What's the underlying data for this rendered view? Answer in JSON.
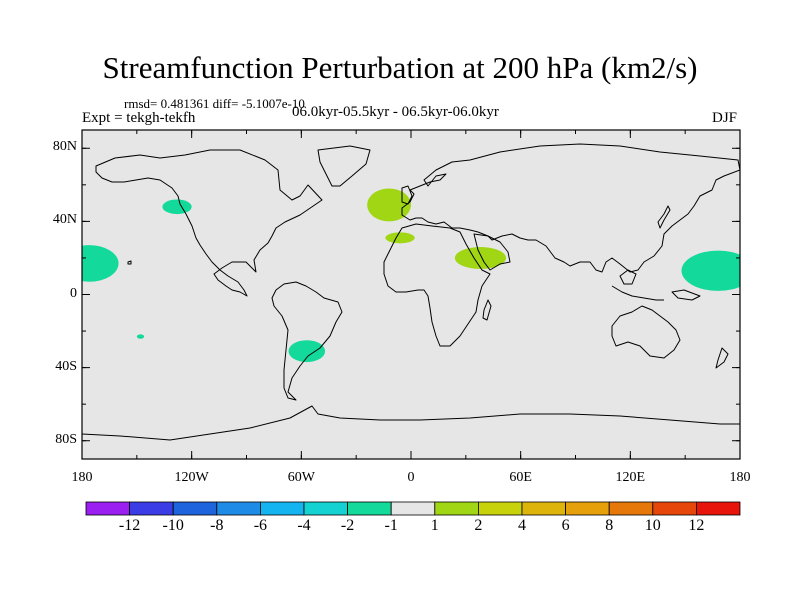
{
  "title": "Streamfunction Perturbation at 200 hPa (km2/s)",
  "stats": "rmsd= 0.481361 diff= -5.1007e-10",
  "expt": "Expt = tekgh-tekfh",
  "period": "06.0kyr-05.5kyr - 06.5kyr-06.0kyr",
  "season": "DJF",
  "colors": {
    "ocean": "#e6e6e6",
    "coast": "#000000"
  },
  "y_ticks": [
    {
      "lat": 80,
      "label": "80N"
    },
    {
      "lat": 40,
      "label": "40N"
    },
    {
      "lat": 0,
      "label": "0"
    },
    {
      "lat": -40,
      "label": "40S"
    },
    {
      "lat": -80,
      "label": "80S"
    }
  ],
  "x_ticks": [
    {
      "lon": -180,
      "label": "180"
    },
    {
      "lon": -120,
      "label": "120W"
    },
    {
      "lon": -60,
      "label": "60W"
    },
    {
      "lon": 0,
      "label": "0"
    },
    {
      "lon": 60,
      "label": "60E"
    },
    {
      "lon": 120,
      "label": "120E"
    },
    {
      "lon": 180,
      "label": "180"
    }
  ],
  "anomalies": [
    {
      "name": "north-atlantic",
      "lon": -12,
      "lat": 49,
      "rlon": 12,
      "rlat": 9,
      "color": "#a0d614"
    },
    {
      "name": "mediterranean",
      "lon": -6,
      "lat": 31,
      "rlon": 8,
      "rlat": 3,
      "color": "#a0d614"
    },
    {
      "name": "north-africa",
      "lon": 38,
      "lat": 20,
      "rlon": 14,
      "rlat": 6,
      "color": "#a0d614"
    },
    {
      "name": "ne-pacific",
      "lon": -128,
      "lat": 48,
      "rlon": 8,
      "rlat": 4,
      "color": "#13d99a"
    },
    {
      "name": "central-pacific-east",
      "lon": -176,
      "lat": 17,
      "rlon": 16,
      "rlat": 10,
      "color": "#13d99a"
    },
    {
      "name": "western-pacific",
      "lon": 168,
      "lat": 13,
      "rlon": 20,
      "rlat": 11,
      "color": "#13d99a"
    },
    {
      "name": "south-america",
      "lon": -57,
      "lat": -31,
      "rlon": 10,
      "rlat": 6,
      "color": "#13d99a"
    },
    {
      "name": "small-south-pacific",
      "lon": -148,
      "lat": -23,
      "rlon": 2,
      "rlat": 1.2,
      "color": "#13d99a"
    }
  ],
  "colorbar": {
    "colors": [
      "#9b1ff0",
      "#3c3ce6",
      "#1e64dc",
      "#1e8ce6",
      "#14b4f0",
      "#14d2d2",
      "#13d99a",
      "#e6e6e6",
      "#a0d614",
      "#c8d20a",
      "#dcb40a",
      "#e6a00a",
      "#e6780a",
      "#e6460a",
      "#e6140a"
    ],
    "labels": [
      "-12",
      "-10",
      "-8",
      "-6",
      "-4",
      "-2",
      "-1",
      "1",
      "2",
      "4",
      "6",
      "8",
      "10",
      "12"
    ]
  }
}
